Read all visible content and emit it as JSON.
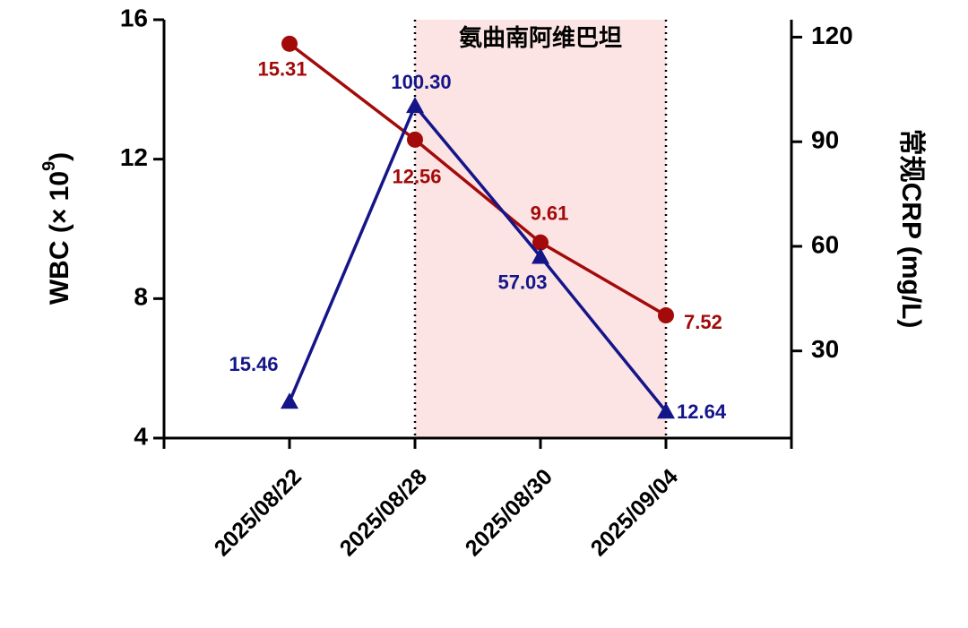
{
  "chart_data": {
    "type": "line",
    "categories": [
      "2025/08/22",
      "2025/08/28",
      "2025/08/30",
      "2025/09/04"
    ],
    "ylabel": "WBC (× 10",
    "ylabel_exponent": "9",
    "ylabel_end": ")",
    "y2label": "常规CRP (mg/L)",
    "ylim": [
      4,
      16
    ],
    "yticks": [
      4,
      8,
      12,
      16
    ],
    "y2lim": [
      5,
      125
    ],
    "y2ticks": [
      30,
      60,
      90,
      120
    ],
    "shaded_span": {
      "label": "氨曲南阿维巴坦",
      "from": "2025/08/28",
      "to": "2025/09/04",
      "color": "#fce4e4"
    },
    "series": [
      {
        "name": "WBC",
        "color": "#a30a0a",
        "marker": "circle",
        "values": [
          15.31,
          12.56,
          9.61,
          7.52
        ],
        "value_labels": [
          "15.31",
          "12.56",
          "9.61",
          "7.52"
        ]
      },
      {
        "name": "常规CRP",
        "color": "#15158a",
        "marker": "triangle",
        "axis": "y2",
        "values": [
          15.46,
          100.3,
          57.03,
          12.64
        ],
        "value_labels": [
          "15.46",
          "100.30",
          "57.03",
          "12.64"
        ]
      }
    ]
  }
}
